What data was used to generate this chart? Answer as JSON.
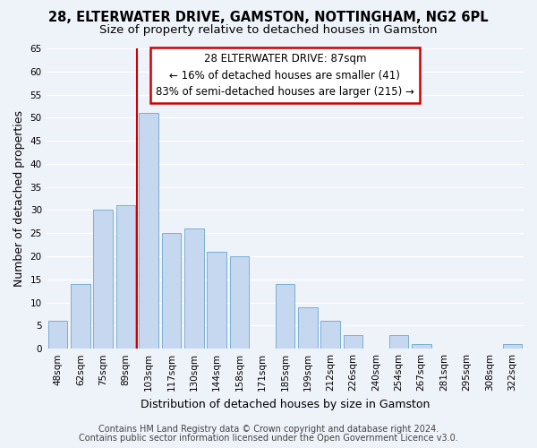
{
  "title": "28, ELTERWATER DRIVE, GAMSTON, NOTTINGHAM, NG2 6PL",
  "subtitle": "Size of property relative to detached houses in Gamston",
  "xlabel": "Distribution of detached houses by size in Gamston",
  "ylabel": "Number of detached properties",
  "bar_labels": [
    "48sqm",
    "62sqm",
    "75sqm",
    "89sqm",
    "103sqm",
    "117sqm",
    "130sqm",
    "144sqm",
    "158sqm",
    "171sqm",
    "185sqm",
    "199sqm",
    "212sqm",
    "226sqm",
    "240sqm",
    "254sqm",
    "267sqm",
    "281sqm",
    "295sqm",
    "308sqm",
    "322sqm"
  ],
  "bar_values": [
    6,
    14,
    30,
    31,
    51,
    25,
    26,
    21,
    20,
    0,
    14,
    9,
    6,
    3,
    0,
    3,
    1,
    0,
    0,
    0,
    1
  ],
  "bar_color": "#c5d8f0",
  "bar_edge_color": "#7bafd4",
  "vline_x": 3.5,
  "vline_color": "#cc0000",
  "ylim": [
    0,
    65
  ],
  "yticks": [
    0,
    5,
    10,
    15,
    20,
    25,
    30,
    35,
    40,
    45,
    50,
    55,
    60,
    65
  ],
  "annotation_line1": "28 ELTERWATER DRIVE: 87sqm",
  "annotation_line2": "← 16% of detached houses are smaller (41)",
  "annotation_line3": "83% of semi-detached houses are larger (215) →",
  "footer1": "Contains HM Land Registry data © Crown copyright and database right 2024.",
  "footer2": "Contains public sector information licensed under the Open Government Licence v3.0.",
  "bg_color": "#eef2f9",
  "plot_bg_color": "#eef2f9",
  "title_fontsize": 10.5,
  "subtitle_fontsize": 9.5,
  "axis_label_fontsize": 9,
  "tick_fontsize": 7.5,
  "footer_fontsize": 7,
  "annotation_fontsize": 8.5
}
